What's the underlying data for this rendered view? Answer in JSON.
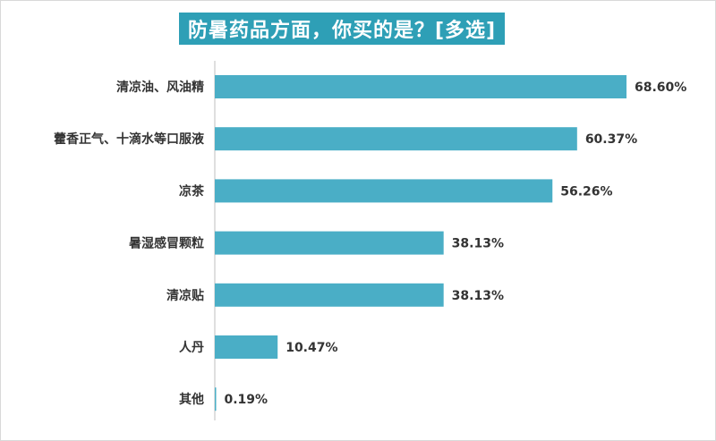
{
  "chart_data": {
    "type": "bar",
    "orientation": "horizontal",
    "title": "防暑药品方面，你买的是？[多选]",
    "categories": [
      "清凉油、风油精",
      "藿香正气、十滴水等口服液",
      "凉茶",
      "暑湿感冒颗粒",
      "清凉贴",
      "人丹",
      "其他"
    ],
    "values": [
      68.6,
      60.37,
      56.26,
      38.13,
      38.13,
      10.47,
      0.19
    ],
    "value_labels": [
      "68.60%",
      "60.37%",
      "56.26%",
      "38.13%",
      "38.13%",
      "10.47%",
      "0.19%"
    ],
    "unit": "%",
    "xlim": [
      0,
      70
    ],
    "grid": false,
    "legend": "none",
    "colors": {
      "bar": "#4aaec6",
      "title_bg": "#2e9fb6",
      "title_text": "#ffffff",
      "axis": "#bfbfbf",
      "label": "#333333"
    }
  }
}
